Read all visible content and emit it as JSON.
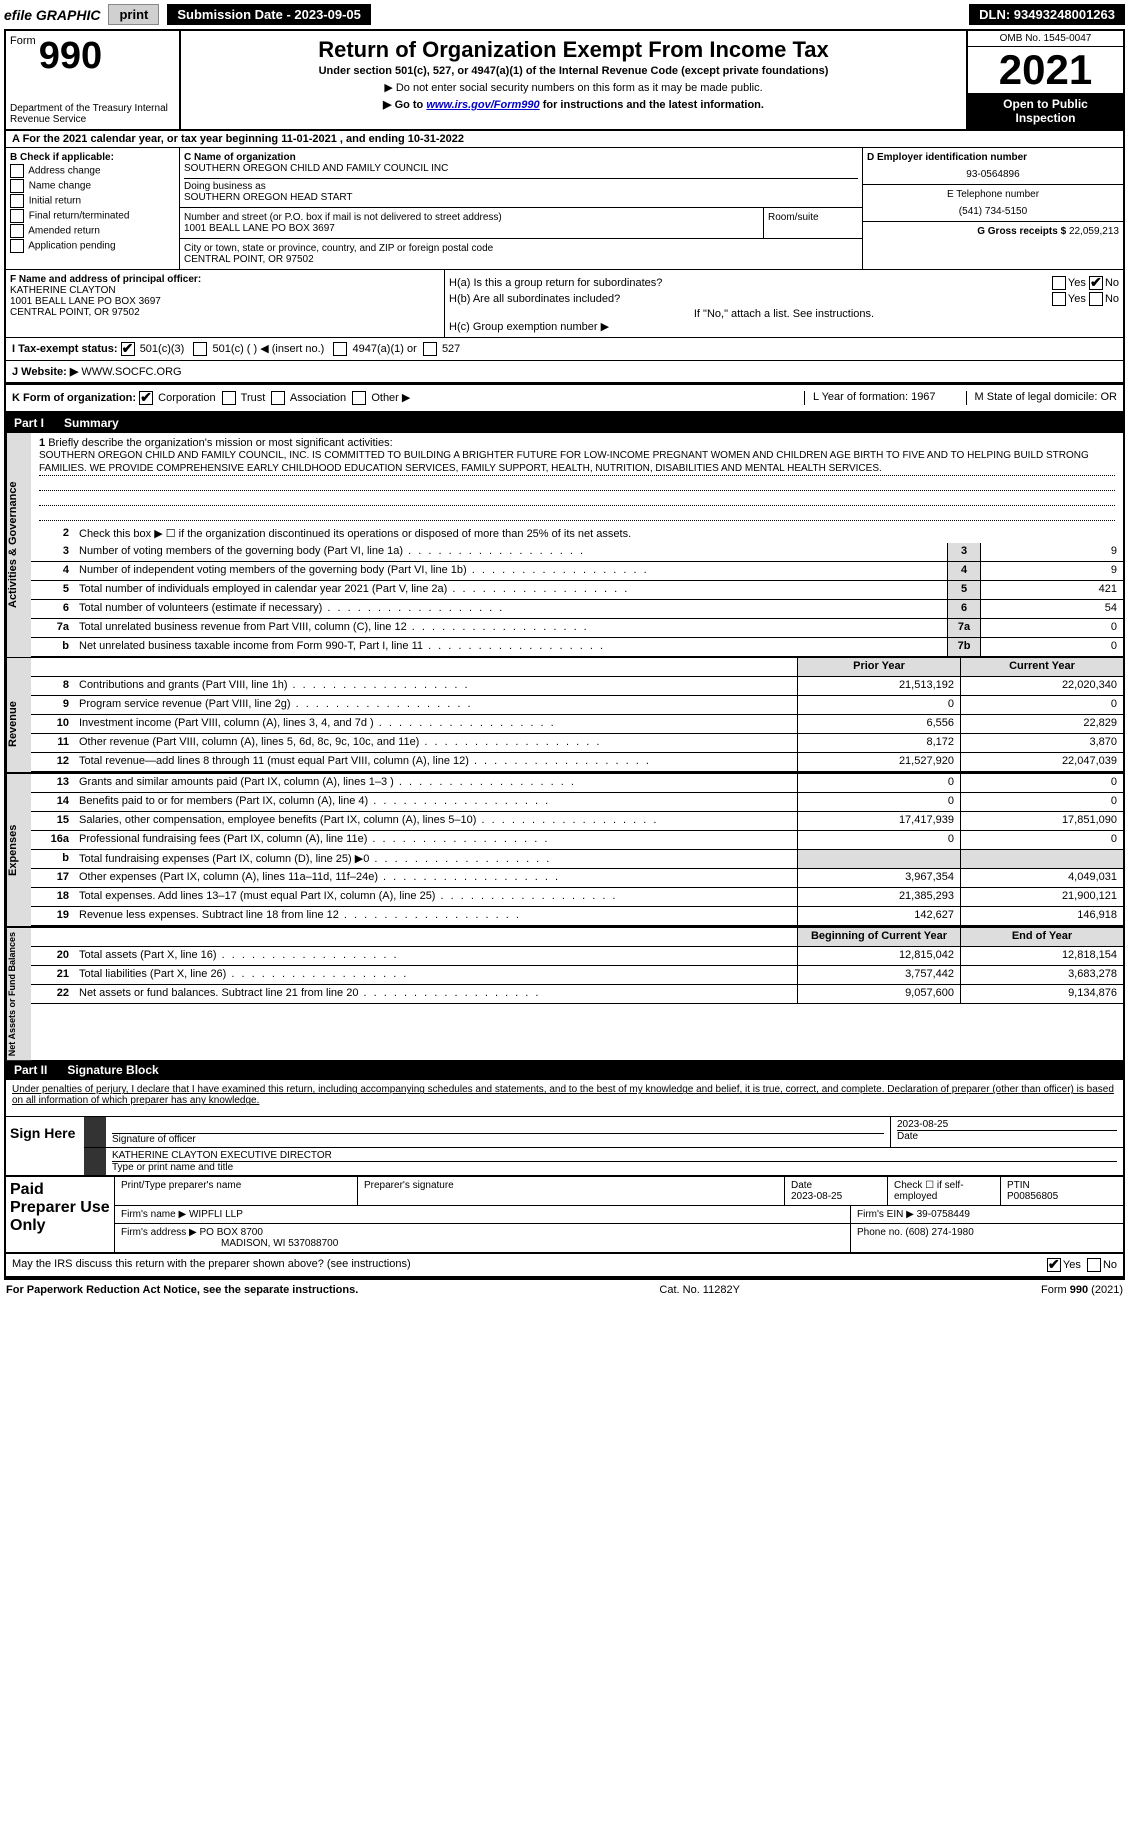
{
  "topbar": {
    "efile": "efile GRAPHIC",
    "print": "print",
    "submission": "Submission Date - 2023-09-05",
    "dln": "DLN: 93493248001263"
  },
  "header": {
    "form_label": "Form",
    "form_number": "990",
    "dept": "Department of the Treasury Internal Revenue Service",
    "title": "Return of Organization Exempt From Income Tax",
    "subtitle": "Under section 501(c), 527, or 4947(a)(1) of the Internal Revenue Code (except private foundations)",
    "warn": "▶ Do not enter social security numbers on this form as it may be made public.",
    "goto_pre": "▶ Go to ",
    "goto_link": "www.irs.gov/Form990",
    "goto_post": " for instructions and the latest information.",
    "omb": "OMB No. 1545-0047",
    "year": "2021",
    "open": "Open to Public Inspection"
  },
  "row_a": "A For the 2021 calendar year, or tax year beginning 11-01-2021   , and ending 10-31-2022",
  "col_b": {
    "header": "B Check if applicable:",
    "opts": [
      "Address change",
      "Name change",
      "Initial return",
      "Final return/terminated",
      "Amended return",
      "Application pending"
    ]
  },
  "col_c": {
    "name_label": "C Name of organization",
    "name": "SOUTHERN OREGON CHILD AND FAMILY COUNCIL INC",
    "dba_label": "Doing business as",
    "dba": "SOUTHERN OREGON HEAD START",
    "addr_label": "Number and street (or P.O. box if mail is not delivered to street address)",
    "room_label": "Room/suite",
    "addr": "1001 BEALL LANE PO BOX 3697",
    "city_label": "City or town, state or province, country, and ZIP or foreign postal code",
    "city": "CENTRAL POINT, OR  97502"
  },
  "col_d": {
    "ein_label": "D Employer identification number",
    "ein": "93-0564896",
    "phone_label": "E Telephone number",
    "phone": "(541) 734-5150",
    "gross_label": "G Gross receipts $",
    "gross": "22,059,213"
  },
  "col_f": {
    "label": "F Name and address of principal officer:",
    "name": "KATHERINE CLAYTON",
    "addr1": "1001 BEALL LANE PO BOX 3697",
    "addr2": "CENTRAL POINT, OR  97502"
  },
  "col_h": {
    "ha": "H(a)  Is this a group return for subordinates?",
    "hb": "H(b)  Are all subordinates included?",
    "hb_note": "If \"No,\" attach a list. See instructions.",
    "hc": "H(c)  Group exemption number ▶"
  },
  "row_i": {
    "label": "I  Tax-exempt status:",
    "opt1": "501(c)(3)",
    "opt2": "501(c) (  ) ◀ (insert no.)",
    "opt3": "4947(a)(1) or",
    "opt4": "527"
  },
  "row_j": {
    "label": "J  Website: ▶",
    "val": "WWW.SOCFC.ORG"
  },
  "row_k": {
    "label": "K Form of organization:",
    "opts": [
      "Corporation",
      "Trust",
      "Association",
      "Other ▶"
    ],
    "l": "L Year of formation: 1967",
    "m": "M State of legal domicile: OR"
  },
  "part1": {
    "label": "Part I",
    "title": "Summary"
  },
  "mission": {
    "num": "1",
    "label": "Briefly describe the organization's mission or most significant activities:",
    "text": "SOUTHERN OREGON CHILD AND FAMILY COUNCIL, INC. IS COMMITTED TO BUILDING A BRIGHTER FUTURE FOR LOW-INCOME PREGNANT WOMEN AND CHILDREN AGE BIRTH TO FIVE AND TO HELPING BUILD STRONG FAMILIES. WE PROVIDE COMPREHENSIVE EARLY CHILDHOOD EDUCATION SERVICES, FAMILY SUPPORT, HEALTH, NUTRITION, DISABILITIES AND MENTAL HEALTH SERVICES."
  },
  "lines_ag": [
    {
      "n": "2",
      "t": "Check this box ▶ ☐ if the organization discontinued its operations or disposed of more than 25% of its net assets.",
      "box": "",
      "v": ""
    },
    {
      "n": "3",
      "t": "Number of voting members of the governing body (Part VI, line 1a)",
      "box": "3",
      "v": "9"
    },
    {
      "n": "4",
      "t": "Number of independent voting members of the governing body (Part VI, line 1b)",
      "box": "4",
      "v": "9"
    },
    {
      "n": "5",
      "t": "Total number of individuals employed in calendar year 2021 (Part V, line 2a)",
      "box": "5",
      "v": "421"
    },
    {
      "n": "6",
      "t": "Total number of volunteers (estimate if necessary)",
      "box": "6",
      "v": "54"
    },
    {
      "n": "7a",
      "t": "Total unrelated business revenue from Part VIII, column (C), line 12",
      "box": "7a",
      "v": "0"
    },
    {
      "n": "b",
      "t": "Net unrelated business taxable income from Form 990-T, Part I, line 11",
      "box": "7b",
      "v": "0"
    }
  ],
  "col_headers": {
    "prior": "Prior Year",
    "current": "Current Year"
  },
  "revenue": [
    {
      "n": "8",
      "t": "Contributions and grants (Part VIII, line 1h)",
      "p": "21,513,192",
      "c": "22,020,340"
    },
    {
      "n": "9",
      "t": "Program service revenue (Part VIII, line 2g)",
      "p": "0",
      "c": "0"
    },
    {
      "n": "10",
      "t": "Investment income (Part VIII, column (A), lines 3, 4, and 7d )",
      "p": "6,556",
      "c": "22,829"
    },
    {
      "n": "11",
      "t": "Other revenue (Part VIII, column (A), lines 5, 6d, 8c, 9c, 10c, and 11e)",
      "p": "8,172",
      "c": "3,870"
    },
    {
      "n": "12",
      "t": "Total revenue—add lines 8 through 11 (must equal Part VIII, column (A), line 12)",
      "p": "21,527,920",
      "c": "22,047,039"
    }
  ],
  "expenses": [
    {
      "n": "13",
      "t": "Grants and similar amounts paid (Part IX, column (A), lines 1–3 )",
      "p": "0",
      "c": "0"
    },
    {
      "n": "14",
      "t": "Benefits paid to or for members (Part IX, column (A), line 4)",
      "p": "0",
      "c": "0"
    },
    {
      "n": "15",
      "t": "Salaries, other compensation, employee benefits (Part IX, column (A), lines 5–10)",
      "p": "17,417,939",
      "c": "17,851,090"
    },
    {
      "n": "16a",
      "t": "Professional fundraising fees (Part IX, column (A), line 11e)",
      "p": "0",
      "c": "0"
    },
    {
      "n": "b",
      "t": "Total fundraising expenses (Part IX, column (D), line 25) ▶0",
      "p": "",
      "c": "",
      "gray": true
    },
    {
      "n": "17",
      "t": "Other expenses (Part IX, column (A), lines 11a–11d, 11f–24e)",
      "p": "3,967,354",
      "c": "4,049,031"
    },
    {
      "n": "18",
      "t": "Total expenses. Add lines 13–17 (must equal Part IX, column (A), line 25)",
      "p": "21,385,293",
      "c": "21,900,121"
    },
    {
      "n": "19",
      "t": "Revenue less expenses. Subtract line 18 from line 12",
      "p": "142,627",
      "c": "146,918"
    }
  ],
  "net_headers": {
    "begin": "Beginning of Current Year",
    "end": "End of Year"
  },
  "netassets": [
    {
      "n": "20",
      "t": "Total assets (Part X, line 16)",
      "p": "12,815,042",
      "c": "12,818,154"
    },
    {
      "n": "21",
      "t": "Total liabilities (Part X, line 26)",
      "p": "3,757,442",
      "c": "3,683,278"
    },
    {
      "n": "22",
      "t": "Net assets or fund balances. Subtract line 21 from line 20",
      "p": "9,057,600",
      "c": "9,134,876"
    }
  ],
  "side_labels": {
    "ag": "Activities & Governance",
    "rev": "Revenue",
    "exp": "Expenses",
    "net": "Net Assets or Fund Balances"
  },
  "part2": {
    "label": "Part II",
    "title": "Signature Block",
    "penalty": "Under penalties of perjury, I declare that I have examined this return, including accompanying schedules and statements, and to the best of my knowledge and belief, it is true, correct, and complete. Declaration of preparer (other than officer) is based on all information of which preparer has any knowledge."
  },
  "sign": {
    "label": "Sign Here",
    "sig_label": "Signature of officer",
    "date": "2023-08-25",
    "date_label": "Date",
    "name": "KATHERINE CLAYTON  EXECUTIVE DIRECTOR",
    "name_label": "Type or print name and title"
  },
  "preparer": {
    "label": "Paid Preparer Use Only",
    "h1": "Print/Type preparer's name",
    "h2": "Preparer's signature",
    "h3": "Date",
    "h3v": "2023-08-25",
    "h4": "Check ☐ if self-employed",
    "h5": "PTIN",
    "h5v": "P00856805",
    "firm_label": "Firm's name    ▶",
    "firm": "WIPFLI LLP",
    "ein_label": "Firm's EIN ▶",
    "ein": "39-0758449",
    "addr_label": "Firm's address ▶",
    "addr": "PO BOX 8700",
    "addr2": "MADISON, WI  537088700",
    "phone_label": "Phone no.",
    "phone": "(608) 274-1980"
  },
  "may_discuss": "May the IRS discuss this return with the preparer shown above? (see instructions)",
  "footer": {
    "left": "For Paperwork Reduction Act Notice, see the separate instructions.",
    "mid": "Cat. No. 11282Y",
    "right": "Form 990 (2021)"
  }
}
